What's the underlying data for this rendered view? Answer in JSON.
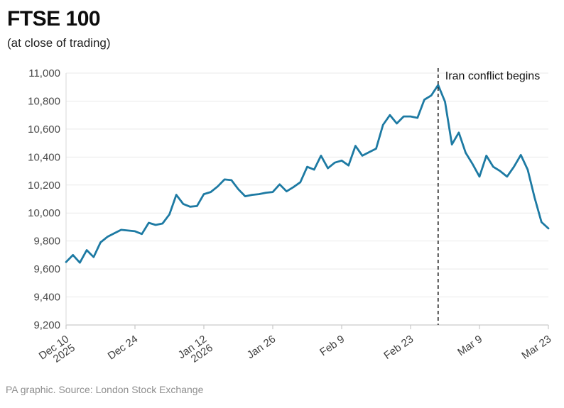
{
  "header": {
    "title": "FTSE 100",
    "subtitle": "(at close of trading)"
  },
  "footer": {
    "source": "PA graphic. Source: London Stock Exchange"
  },
  "chart_data": {
    "type": "line",
    "title": "FTSE 100",
    "subtitle": "(at close of trading)",
    "xlabel": "",
    "ylabel": "",
    "ylim": [
      9200,
      11000
    ],
    "grid": true,
    "legend_position": "none",
    "series": [
      {
        "name": "FTSE 100 at close of trading",
        "values": [
          9650,
          9700,
          9645,
          9735,
          9685,
          9790,
          9830,
          9855,
          9880,
          9875,
          9870,
          9850,
          9930,
          9915,
          9925,
          9990,
          10130,
          10065,
          10045,
          10050,
          10135,
          10150,
          10190,
          10240,
          10235,
          10170,
          10120,
          10130,
          10135,
          10145,
          10150,
          10205,
          10155,
          10185,
          10220,
          10330,
          10310,
          10410,
          10320,
          10360,
          10375,
          10340,
          10480,
          10410,
          10435,
          10460,
          10630,
          10700,
          10640,
          10690,
          10690,
          10680,
          10810,
          10840,
          10915,
          10795,
          10490,
          10575,
          10430,
          10350,
          10260,
          10410,
          10330,
          10300,
          10260,
          10330,
          10415,
          10310,
          10110,
          9935,
          9890
        ]
      }
    ],
    "x_tick_indices": [
      0,
      10,
      20,
      30,
      40,
      50,
      60,
      70
    ],
    "x_tick_labels": [
      [
        "Dec 10",
        "2025"
      ],
      [
        "Dec 24"
      ],
      [
        "Jan 12",
        "2026"
      ],
      [
        "Jan 26"
      ],
      [
        "Feb 9"
      ],
      [
        "Feb 23"
      ],
      [
        "Mar 9"
      ],
      [
        "Mar 23"
      ]
    ],
    "y_ticks": [
      9200,
      9400,
      9600,
      9800,
      10000,
      10200,
      10400,
      10600,
      10800,
      11000
    ],
    "y_tick_labels": [
      "9,200",
      "9,400",
      "9,600",
      "9,800",
      "10,000",
      "10,200",
      "10,400",
      "10,600",
      "10,800",
      "11,000"
    ],
    "annotation": {
      "label": "Iran conflict begins",
      "index": 54
    },
    "colors": {
      "line": "#1d7aa3",
      "gridline": "#e9e9e9",
      "axis": "#c9c9c9",
      "plot_border": "#d9d9d9",
      "dashed_line": "#2e2e2e"
    }
  }
}
